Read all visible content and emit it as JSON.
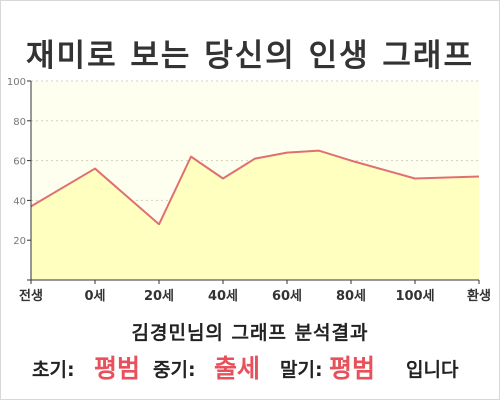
{
  "title": "재미로 보는 당신의 인생 그래프",
  "subtitle": "김경민님의 그래프 분석결과",
  "verdict": {
    "early_label": "초기:",
    "early_value": "평범",
    "middle_label": "중기:",
    "middle_value": "출세",
    "late_label": "말기:",
    "late_value": "평범",
    "suffix": "입니다"
  },
  "colors": {
    "line": "#e07070",
    "fill": "#ffffc0",
    "plot_bg": "#fffff0",
    "highlight": "#e8505b"
  },
  "chart_data": {
    "type": "area",
    "title": "재미로 보는 당신의 인생 그래프",
    "xlabel": "",
    "ylabel": "",
    "x_tick_labels": [
      "전생",
      "0세",
      "20세",
      "40세",
      "60세",
      "80세",
      "100세",
      "환생"
    ],
    "y_ticks": [
      0,
      20,
      40,
      60,
      80,
      100
    ],
    "y_tick_labels": [
      "",
      "20",
      "40",
      "60",
      "80",
      "100"
    ],
    "ylim": [
      0,
      100
    ],
    "grid": true,
    "legend": "none",
    "series": [
      {
        "x": [
          "전생",
          "0세",
          "20세",
          "30세",
          "40세",
          "50세",
          "60세",
          "70세",
          "80세",
          "100세",
          "환생"
        ],
        "values": [
          37,
          56,
          28,
          62,
          51,
          61,
          64,
          65,
          60,
          51,
          52
        ]
      }
    ]
  }
}
